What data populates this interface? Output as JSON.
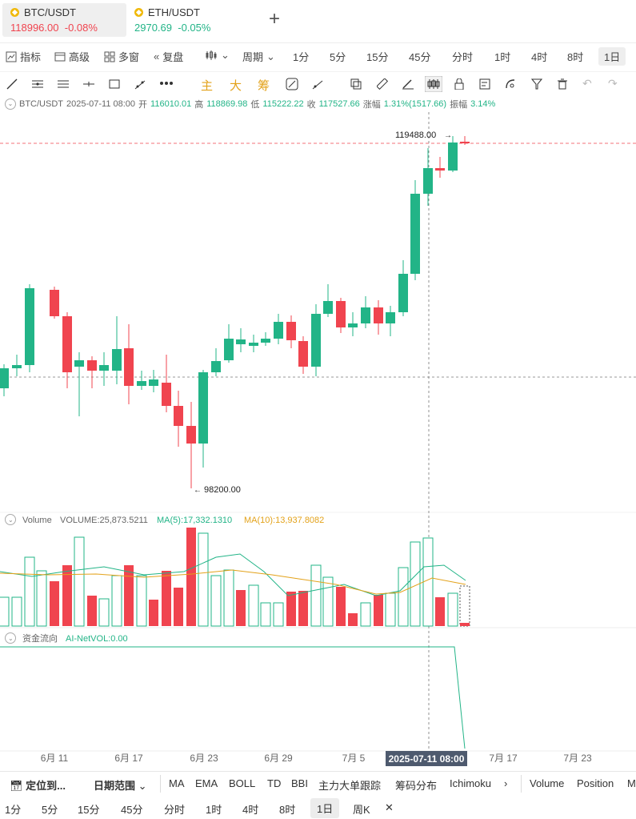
{
  "tabs": [
    {
      "symbol": "BTC/USDT",
      "price": "118996.00",
      "change": "-0.08%"
    },
    {
      "symbol": "ETH/USDT",
      "price": "2970.69",
      "change": "-0.05%"
    }
  ],
  "toolbar": {
    "indicators": "指标",
    "advanced": "高级",
    "multi_window": "多窗",
    "replay": "复盘",
    "period": "周期",
    "intervals": [
      "1分",
      "5分",
      "15分",
      "45分",
      "分时",
      "1时",
      "4时",
      "8时",
      "1日"
    ],
    "selected_interval": "1日"
  },
  "draw_tools": {
    "main": "主",
    "big": "大",
    "chips": "筹"
  },
  "info": {
    "symbol": "BTC/USDT",
    "date": "2025-07-11 08:00",
    "open_label": "开",
    "open": "116010.01",
    "high_label": "高",
    "high": "118869.98",
    "low_label": "低",
    "low": "115222.22",
    "close_label": "收",
    "close": "117527.66",
    "change_label": "涨幅",
    "change": "1.31%(1517.66)",
    "amp_label": "振幅",
    "amp": "3.14%"
  },
  "chart": {
    "high_marker": "119488.00",
    "low_marker": "98200.00",
    "current_price_line": "119488.00",
    "crosshair_date": "2025-07-11 08:00",
    "x_labels": [
      "6月 11",
      "6月 17",
      "6月 23",
      "6月 29",
      "7月 5",
      "7月 17",
      "7月 23"
    ]
  },
  "volume": {
    "label": "Volume",
    "vol_text": "VOLUME:25,873.5211",
    "ma5_text": "MA(5):17,332.1310",
    "ma10_text": "MA(10):13,937.8082",
    "ma5_color": "#22b487",
    "ma10_color": "#e3a21a"
  },
  "flow": {
    "label": "资金流向",
    "value_text": "AI-NetVOL:0.00"
  },
  "bottom_bar": {
    "locate": "定位到...",
    "date_range": "日期范围",
    "indicators": [
      "MA",
      "EMA",
      "BOLL",
      "TD",
      "BBI",
      "主力大单跟踪",
      "筹码分布",
      "Ichimoku"
    ],
    "right_items": [
      "Volume",
      "Position",
      "M"
    ]
  },
  "bottom_intervals": {
    "items": [
      "1分",
      "5分",
      "15分",
      "45分",
      "分时",
      "1时",
      "4时",
      "8时",
      "1日",
      "周K"
    ],
    "selected": "1日"
  },
  "colors": {
    "up": "#22b487",
    "down": "#f0444f",
    "accent": "#e3a21a"
  }
}
